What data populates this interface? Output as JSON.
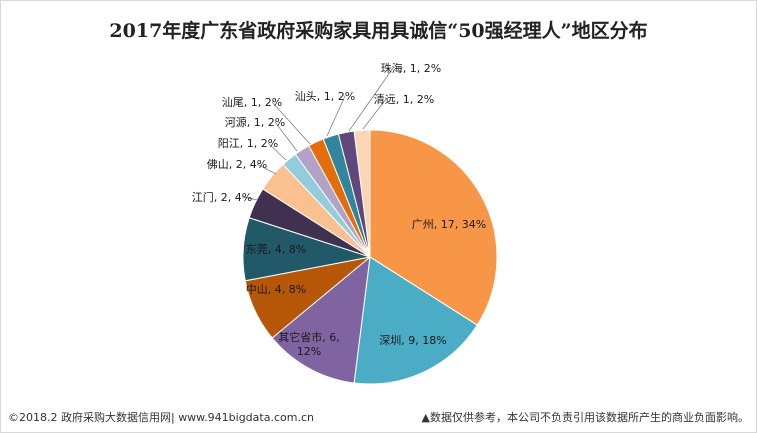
{
  "chart_data": {
    "type": "pie",
    "title": "2017年度广东省政府采购家具用具诚信“50强经理人”地区分布",
    "slices": [
      {
        "name": "广州",
        "value": 17,
        "percent": "34%",
        "color": "#f79646"
      },
      {
        "name": "深圳",
        "value": 9,
        "percent": "18%",
        "color": "#4bacc6"
      },
      {
        "name": "其它省市",
        "value": 6,
        "percent": "12%",
        "color": "#8064a2"
      },
      {
        "name": "中山",
        "value": 4,
        "percent": "8%",
        "color": "#b65708"
      },
      {
        "name": "东莞",
        "value": 4,
        "percent": "8%",
        "color": "#215968"
      },
      {
        "name": "江门",
        "value": 2,
        "percent": "4%",
        "color": "#403151"
      },
      {
        "name": "佛山",
        "value": 2,
        "percent": "4%",
        "color": "#fac090"
      },
      {
        "name": "阳江",
        "value": 1,
        "percent": "2%",
        "color": "#93cddd"
      },
      {
        "name": "河源",
        "value": 1,
        "percent": "2%",
        "color": "#b3a2c7"
      },
      {
        "name": "汕尾",
        "value": 1,
        "percent": "2%",
        "color": "#e46c0a"
      },
      {
        "name": "汕头",
        "value": 1,
        "percent": "2%",
        "color": "#31859c"
      },
      {
        "name": "珠海",
        "value": 1,
        "percent": "2%",
        "color": "#60497a"
      },
      {
        "name": "清远",
        "value": 1,
        "percent": "2%",
        "color": "#fcd5b5"
      }
    ]
  },
  "footer": {
    "left": "©2018.2 政府采购大数据信用网| www.941bigdata.com.cn",
    "right": "▲数据仅供参考，本公司不负责引用该数据所产生的商业负面影响。"
  }
}
